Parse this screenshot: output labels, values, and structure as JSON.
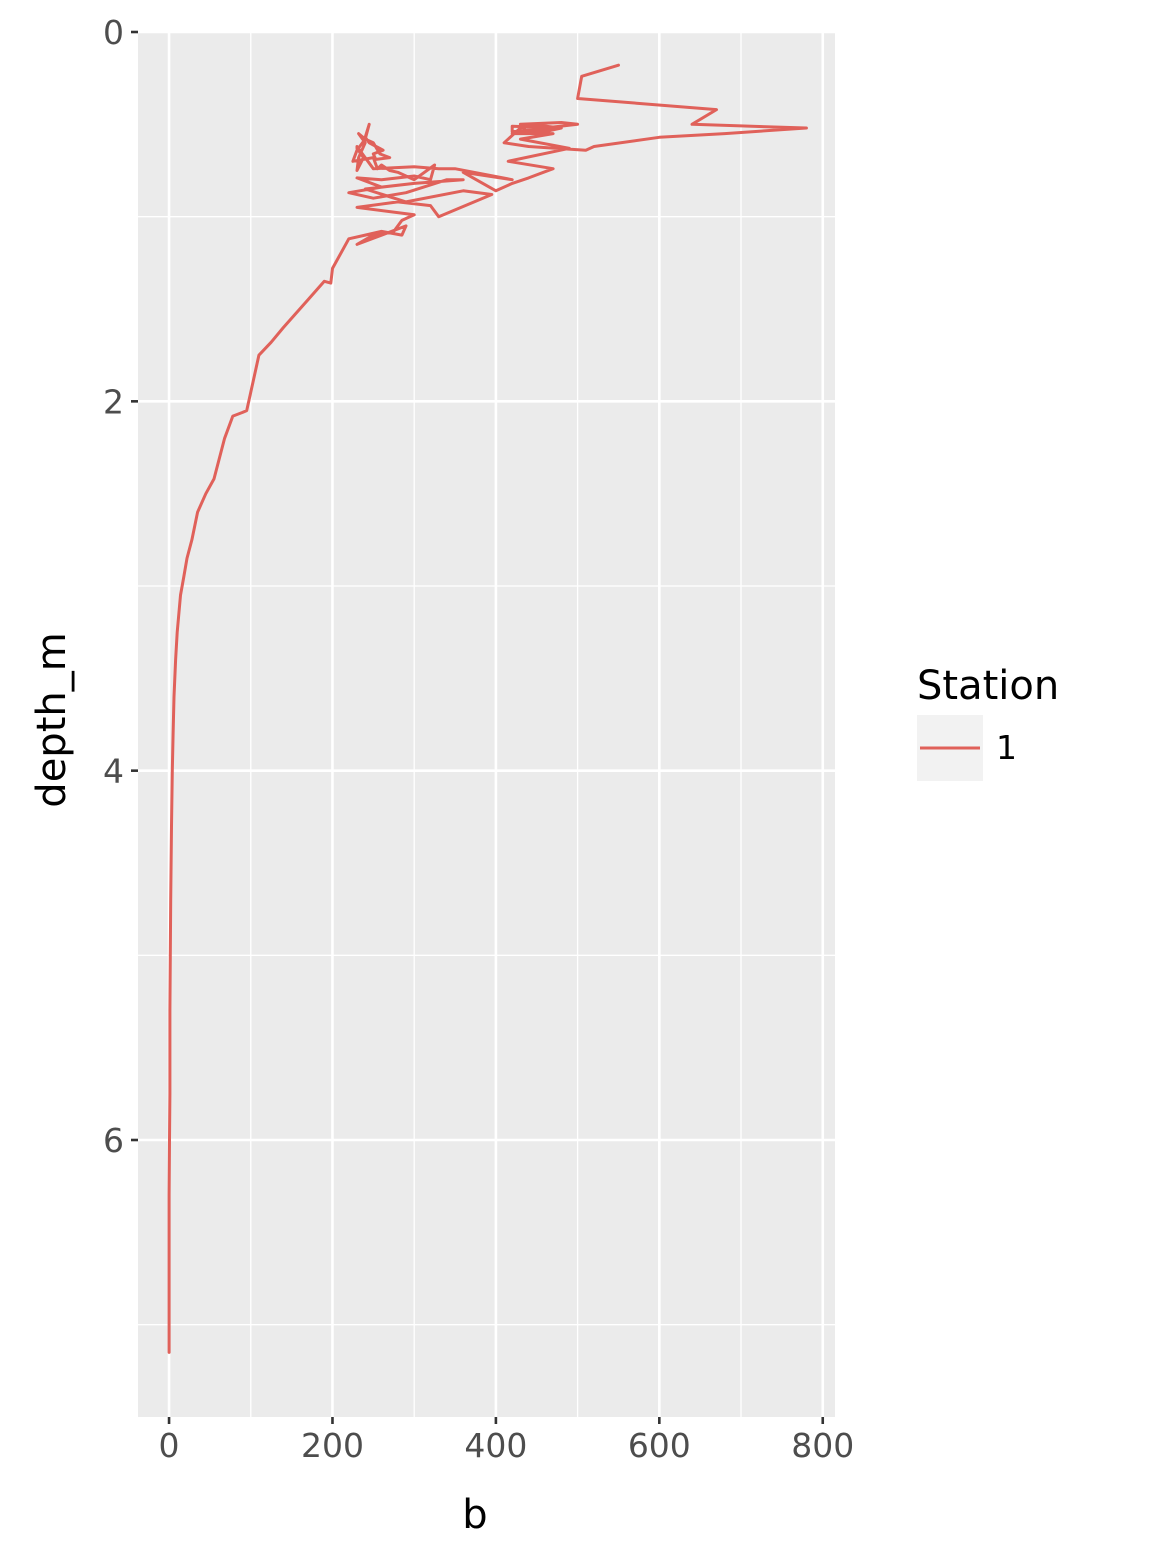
{
  "chart_data": {
    "type": "line",
    "title": "",
    "xlabel": "b",
    "ylabel": "depth_m",
    "xlim": [
      -38,
      815
    ],
    "ylim": [
      0,
      7.5
    ],
    "y_reversed": true,
    "xticks": [
      0,
      200,
      400,
      600,
      800
    ],
    "xtick_labels": [
      "0",
      "200",
      "400",
      "600",
      "800"
    ],
    "yticks": [
      0,
      2,
      4,
      6
    ],
    "ytick_labels": [
      "0",
      "2",
      "4",
      "6"
    ],
    "grid": true,
    "background": "#ebebeb",
    "legend": {
      "title": "Station",
      "position": "right",
      "entries": [
        {
          "label": "1",
          "color": "#e0615a"
        }
      ]
    },
    "series": [
      {
        "name": "1",
        "color": "#e0615a",
        "points": [
          [
            0,
            7.15
          ],
          [
            0,
            6.9
          ],
          [
            0,
            6.6
          ],
          [
            0,
            6.3
          ],
          [
            0.5,
            6.0
          ],
          [
            1,
            5.75
          ],
          [
            1,
            5.6
          ],
          [
            1,
            5.3
          ],
          [
            1.5,
            5.0
          ],
          [
            2,
            4.7
          ],
          [
            3,
            4.3
          ],
          [
            4,
            4.0
          ],
          [
            5,
            3.8
          ],
          [
            6,
            3.6
          ],
          [
            8,
            3.4
          ],
          [
            10,
            3.25
          ],
          [
            14,
            3.05
          ],
          [
            18,
            2.95
          ],
          [
            22,
            2.85
          ],
          [
            28,
            2.75
          ],
          [
            35,
            2.6
          ],
          [
            45,
            2.5
          ],
          [
            55,
            2.42
          ],
          [
            68,
            2.2
          ],
          [
            78,
            2.08
          ],
          [
            90,
            2.06
          ],
          [
            95,
            2.05
          ],
          [
            100,
            1.95
          ],
          [
            110,
            1.75
          ],
          [
            125,
            1.68
          ],
          [
            140,
            1.6
          ],
          [
            170,
            1.45
          ],
          [
            190,
            1.35
          ],
          [
            198,
            1.36
          ],
          [
            200,
            1.28
          ],
          [
            220,
            1.12
          ],
          [
            240,
            1.1
          ],
          [
            260,
            1.08
          ],
          [
            285,
            1.1
          ],
          [
            290,
            1.05
          ],
          [
            230,
            1.15
          ],
          [
            250,
            1.1
          ],
          [
            275,
            1.08
          ],
          [
            285,
            1.02
          ],
          [
            300,
            0.99
          ],
          [
            230,
            0.95
          ],
          [
            280,
            0.92
          ],
          [
            320,
            0.94
          ],
          [
            330,
            1.0
          ],
          [
            395,
            0.88
          ],
          [
            360,
            0.86
          ],
          [
            290,
            0.92
          ],
          [
            240,
            0.85
          ],
          [
            300,
            0.82
          ],
          [
            360,
            0.8
          ],
          [
            340,
            0.8
          ],
          [
            290,
            0.87
          ],
          [
            250,
            0.9
          ],
          [
            220,
            0.87
          ],
          [
            260,
            0.84
          ],
          [
            230,
            0.79
          ],
          [
            260,
            0.8
          ],
          [
            300,
            0.78
          ],
          [
            320,
            0.8
          ],
          [
            325,
            0.72
          ],
          [
            300,
            0.8
          ],
          [
            280,
            0.76
          ],
          [
            270,
            0.75
          ],
          [
            260,
            0.72
          ],
          [
            255,
            0.74
          ],
          [
            250,
            0.68
          ],
          [
            225,
            0.7
          ],
          [
            230,
            0.64
          ],
          [
            240,
            0.58
          ],
          [
            250,
            0.6
          ],
          [
            258,
            0.66
          ],
          [
            270,
            0.68
          ],
          [
            253,
            0.69
          ],
          [
            250,
            0.66
          ],
          [
            262,
            0.64
          ],
          [
            245,
            0.6
          ],
          [
            240,
            0.57
          ],
          [
            245,
            0.5
          ],
          [
            240,
            0.58
          ],
          [
            232,
            0.55
          ],
          [
            240,
            0.6
          ],
          [
            232,
            0.68
          ],
          [
            230,
            0.75
          ],
          [
            238,
            0.68
          ],
          [
            230,
            0.63
          ],
          [
            230,
            0.62
          ],
          [
            250,
            0.74
          ],
          [
            300,
            0.73
          ],
          [
            330,
            0.74
          ],
          [
            350,
            0.74
          ],
          [
            420,
            0.8
          ],
          [
            360,
            0.76
          ],
          [
            400,
            0.86
          ],
          [
            420,
            0.82
          ],
          [
            440,
            0.79
          ],
          [
            470,
            0.74
          ],
          [
            415,
            0.7
          ],
          [
            490,
            0.63
          ],
          [
            430,
            0.58
          ],
          [
            470,
            0.55
          ],
          [
            420,
            0.55
          ],
          [
            480,
            0.52
          ],
          [
            420,
            0.51
          ],
          [
            420,
            0.54
          ],
          [
            500,
            0.5
          ],
          [
            480,
            0.49
          ],
          [
            430,
            0.5
          ],
          [
            440,
            0.55
          ],
          [
            460,
            0.54
          ],
          [
            480,
            0.52
          ],
          [
            440,
            0.5
          ],
          [
            430,
            0.52
          ],
          [
            410,
            0.6
          ],
          [
            440,
            0.62
          ],
          [
            510,
            0.64
          ],
          [
            520,
            0.62
          ],
          [
            600,
            0.57
          ],
          [
            680,
            0.55
          ],
          [
            780,
            0.52
          ],
          [
            640,
            0.5
          ],
          [
            670,
            0.42
          ],
          [
            500,
            0.36
          ],
          [
            505,
            0.24
          ],
          [
            550,
            0.18
          ]
        ]
      }
    ]
  }
}
